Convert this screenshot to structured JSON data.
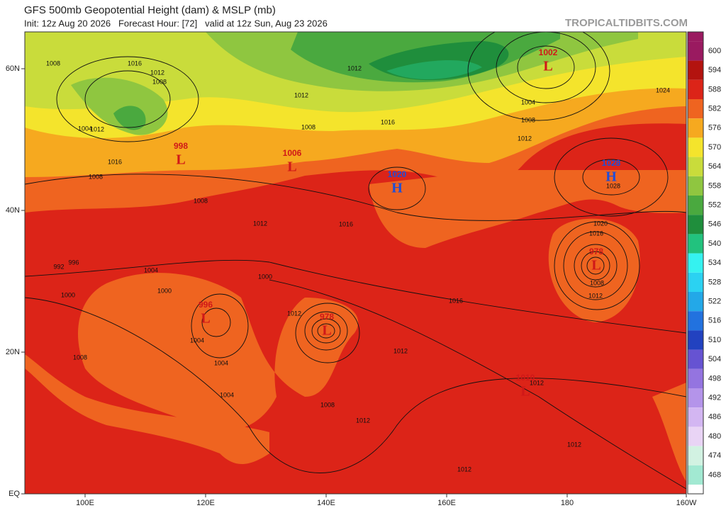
{
  "header": {
    "title": "GFS 500mb Geopotential Height (dam) & MSLP (mb)",
    "subtitle": "Init: 12z Aug 20 2026   Forecast Hour: [72]   valid at 12z Sun, Aug 23 2026",
    "watermark": "TROPICALTIDBITS.COM"
  },
  "latitudes": [
    "60N",
    "40N",
    "20N",
    "EQ"
  ],
  "longitudes": [
    "100E",
    "120E",
    "140E",
    "160E",
    "180",
    "160W"
  ],
  "colorbar": {
    "levels": [
      "600",
      "594",
      "588",
      "582",
      "576",
      "570",
      "564",
      "558",
      "552",
      "546",
      "540",
      "534",
      "528",
      "522",
      "516",
      "510",
      "504",
      "498",
      "492",
      "486",
      "480",
      "474",
      "468"
    ],
    "colors": [
      "#9a1a60",
      "#b3130f",
      "#dc2418",
      "#ef6420",
      "#f6a91f",
      "#f4e42c",
      "#c9dc3b",
      "#8fc640",
      "#4aa93f",
      "#1f8e3c",
      "#22c27e",
      "#35f2f0",
      "#2bd2f2",
      "#23a8e8",
      "#2272df",
      "#2242c0",
      "#6653d2",
      "#9474e0",
      "#b494ea",
      "#d3b6f2",
      "#e9d4f5",
      "#d2f2e2",
      "#a2e9d2"
    ]
  },
  "centers": [
    {
      "type": "L",
      "value": "1002"
    },
    {
      "type": "L",
      "value": "998"
    },
    {
      "type": "L",
      "value": "1006"
    },
    {
      "type": "H",
      "value": "1020"
    },
    {
      "type": "H",
      "value": "1028"
    },
    {
      "type": "L",
      "value": "978"
    },
    {
      "type": "L",
      "value": "996"
    },
    {
      "type": "L",
      "value": "978"
    },
    {
      "type": "L",
      "value": "1010"
    }
  ],
  "contour_labels": [
    "1008",
    "1016",
    "1012",
    "1008",
    "1012",
    "1004",
    "1008",
    "1016",
    "1012",
    "1008",
    "1012",
    "1024",
    "1004",
    "1008",
    "1016",
    "1012",
    "1016",
    "1028",
    "1020",
    "1016",
    "1008",
    "1012",
    "1016",
    "992",
    "996",
    "1000",
    "1004",
    "1000",
    "1008",
    "1012",
    "1000",
    "1004",
    "1004",
    "1008",
    "1004",
    "1012",
    "1008",
    "1012",
    "1012",
    "1012",
    "1012",
    "1012"
  ]
}
